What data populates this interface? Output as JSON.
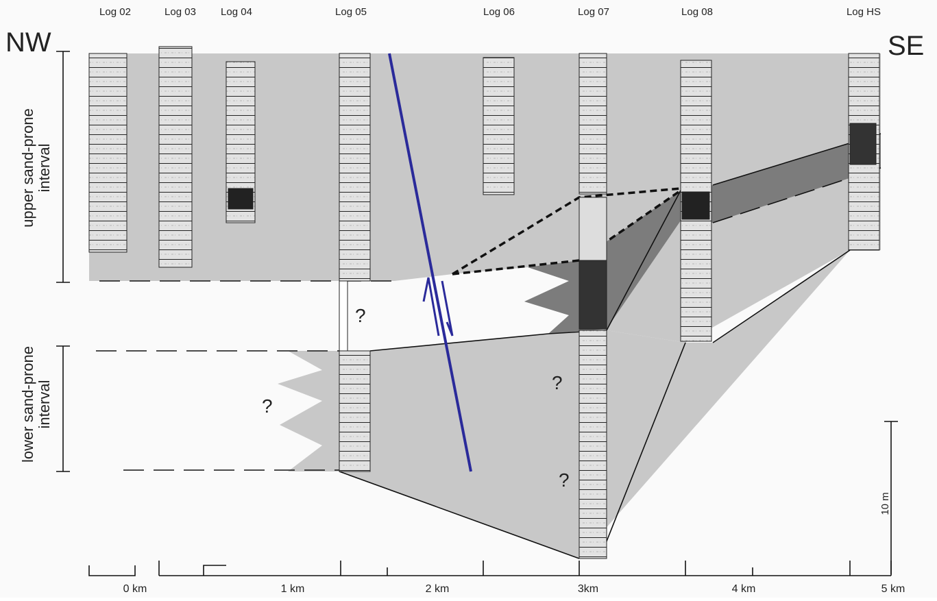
{
  "logs": [
    "Log 02",
    "Log 03",
    "Log 04",
    "Log 05",
    "Log 06",
    "Log 07",
    "Log 08",
    "Log HS"
  ],
  "directions": {
    "left": "NW",
    "right": "SE"
  },
  "intervals": {
    "upper": [
      "upper sand-prone",
      "interval"
    ],
    "lower": [
      "lower sand-prone",
      "interval"
    ]
  },
  "unknown_marks": [
    "?",
    "?",
    "?",
    "?"
  ],
  "scale_bar": "10 m",
  "distance_axis": [
    "0 km",
    "1 km",
    "2 km",
    "3km",
    "4 km",
    "5 km"
  ]
}
